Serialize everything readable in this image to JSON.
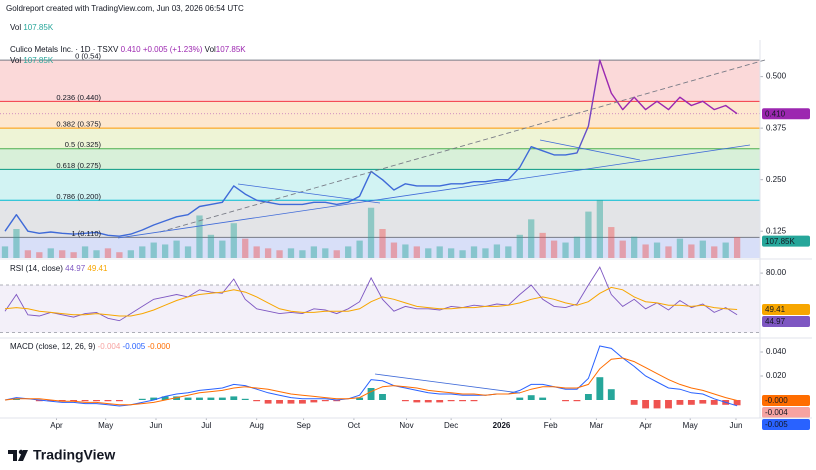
{
  "header": {
    "credit": "Goldreport created with TradingView.com, Jun 03, 2026 06:54 UTC"
  },
  "footer": {
    "brand": "TradingView"
  },
  "chart_data": [
    {
      "type": "price",
      "title": "Culico Metals Inc. · 1D · TSXV",
      "last_label": "0.410",
      "change": "+0.005 (+1.23%)",
      "color": "#5b5bd6",
      "values": [
        0.125,
        0.165,
        0.125,
        0.12,
        0.123,
        0.12,
        0.118,
        0.12,
        0.122,
        0.115,
        0.113,
        0.118,
        0.128,
        0.14,
        0.15,
        0.16,
        0.165,
        0.185,
        0.19,
        0.195,
        0.235,
        0.215,
        0.2,
        0.195,
        0.19,
        0.19,
        0.19,
        0.195,
        0.195,
        0.19,
        0.195,
        0.21,
        0.27,
        0.25,
        0.225,
        0.24,
        0.235,
        0.235,
        0.235,
        0.24,
        0.24,
        0.245,
        0.245,
        0.25,
        0.25,
        0.28,
        0.33,
        0.32,
        0.31,
        0.31,
        0.315,
        0.38,
        0.54,
        0.46,
        0.42,
        0.45,
        0.42,
        0.44,
        0.42,
        0.45,
        0.43,
        0.44,
        0.42,
        0.43,
        0.41
      ],
      "volume": {
        "name": "Vol",
        "last_label": "107.85K",
        "up_color": "#26a69a",
        "down_color": "#ef5350",
        "values": [
          60000,
          150000,
          40000,
          30000,
          50000,
          40000,
          30000,
          60000,
          40000,
          50000,
          30000,
          40000,
          60000,
          80000,
          70000,
          90000,
          60000,
          220000,
          120000,
          90000,
          180000,
          100000,
          60000,
          50000,
          40000,
          50000,
          40000,
          60000,
          50000,
          40000,
          60000,
          90000,
          260000,
          150000,
          80000,
          70000,
          60000,
          50000,
          60000,
          50000,
          40000,
          60000,
          50000,
          70000,
          60000,
          120000,
          200000,
          130000,
          90000,
          80000,
          110000,
          240000,
          300000,
          160000,
          90000,
          110000,
          70000,
          80000,
          60000,
          100000,
          70000,
          90000,
          60000,
          80000,
          107850
        ]
      },
      "fib": [
        {
          "label": "0 (0.54)",
          "value": 0.54,
          "color": "#787b86",
          "fill": "#fbd9d9"
        },
        {
          "label": "0.236 (0.440)",
          "value": 0.44,
          "color": "#f23645",
          "fill": "#fde7cf"
        },
        {
          "label": "0.382 (0.375)",
          "value": 0.375,
          "color": "#ff9800",
          "fill": "#eef4d6"
        },
        {
          "label": "0.5 (0.325)",
          "value": 0.325,
          "color": "#4caf50",
          "fill": "#d8f0d9"
        },
        {
          "label": "0.618 (0.275)",
          "value": 0.275,
          "color": "#089981",
          "fill": "#d2f3f3"
        },
        {
          "label": "0.786 (0.200)",
          "value": 0.2,
          "color": "#00bcd4",
          "fill": "#e3e4e7"
        },
        {
          "label": "1 (0.110)",
          "value": 0.11,
          "color": "#787b86",
          "fill": "#d8dff8"
        }
      ],
      "xlim": [
        0,
        66
      ],
      "ylim": [
        0.06,
        0.55
      ],
      "yticks": [
        {
          "value": 0.5,
          "label": "0.500"
        },
        {
          "value": 0.375,
          "label": "0.375"
        },
        {
          "value": 0.25,
          "label": "0.250"
        },
        {
          "value": 0.125,
          "label": "0.125"
        }
      ]
    },
    {
      "type": "rsi",
      "title": "RSI (14, close)",
      "series": [
        {
          "color": "#7e57c2",
          "last_label": "44.97",
          "values": [
            48,
            62,
            45,
            44,
            47,
            45,
            43,
            46,
            47,
            42,
            40,
            46,
            52,
            58,
            60,
            62,
            60,
            66,
            64,
            63,
            75,
            58,
            50,
            48,
            46,
            47,
            46,
            50,
            49,
            46,
            50,
            56,
            76,
            58,
            48,
            52,
            50,
            50,
            49,
            52,
            51,
            53,
            52,
            54,
            53,
            62,
            70,
            58,
            52,
            51,
            54,
            70,
            85,
            62,
            52,
            58,
            50,
            55,
            49,
            57,
            51,
            54,
            47,
            51,
            44.97
          ]
        },
        {
          "color": "#f7a600",
          "last_label": "49.41",
          "values": [
            50,
            51,
            50,
            48,
            47,
            46,
            45,
            45,
            46,
            45,
            44,
            44,
            46,
            49,
            53,
            57,
            60,
            62,
            63,
            64,
            66,
            64,
            60,
            55,
            50,
            48,
            47,
            47,
            48,
            48,
            48,
            50,
            56,
            60,
            58,
            55,
            52,
            51,
            50,
            50,
            51,
            51,
            52,
            52,
            53,
            55,
            58,
            60,
            58,
            55,
            53,
            56,
            63,
            68,
            66,
            60,
            56,
            55,
            53,
            53,
            52,
            53,
            51,
            50,
            49.41
          ]
        }
      ],
      "band": [
        30,
        70
      ],
      "xlim": [
        0,
        66
      ],
      "ylim": [
        28,
        91
      ],
      "yticks": [
        {
          "value": 80,
          "label": "80.00"
        }
      ]
    },
    {
      "type": "macd",
      "title": "MACD (close, 12, 26, 9)",
      "histogram": {
        "up_color": "#26a69a",
        "down_color": "#ef5350",
        "last_label": "-0.004",
        "values": [
          0,
          0.001,
          0,
          -0.001,
          -0.001,
          -0.001,
          -0.001,
          -0.001,
          -0.001,
          -0.001,
          -0.001,
          0,
          0.001,
          0.002,
          0.003,
          0.003,
          0.002,
          0.002,
          0.002,
          0.002,
          0.003,
          0.001,
          -0.001,
          -0.003,
          -0.003,
          -0.003,
          -0.003,
          -0.002,
          -0.001,
          -0.001,
          0,
          0.002,
          0.01,
          0.005,
          0,
          -0.001,
          -0.002,
          -0.002,
          -0.002,
          -0.001,
          -0.001,
          -0.001,
          0,
          0,
          0,
          0.002,
          0.004,
          0.002,
          0,
          -0.001,
          -0.001,
          0.005,
          0.019,
          0.009,
          0,
          -0.004,
          -0.007,
          -0.007,
          -0.007,
          -0.004,
          -0.004,
          -0.003,
          -0.004,
          -0.004,
          -0.0044
        ]
      },
      "macd": {
        "color": "#2962ff",
        "last_label": "-0.005",
        "values": [
          0,
          0.002,
          0.001,
          0,
          -0.001,
          -0.002,
          -0.002,
          -0.003,
          -0.003,
          -0.004,
          -0.005,
          -0.004,
          -0.002,
          0,
          0.003,
          0.005,
          0.006,
          0.008,
          0.009,
          0.01,
          0.013,
          0.012,
          0.009,
          0.006,
          0.004,
          0.002,
          0.001,
          0.001,
          0.001,
          0,
          0.001,
          0.004,
          0.017,
          0.016,
          0.012,
          0.01,
          0.008,
          0.006,
          0.005,
          0.005,
          0.004,
          0.004,
          0.004,
          0.005,
          0.005,
          0.008,
          0.013,
          0.013,
          0.011,
          0.009,
          0.009,
          0.018,
          0.045,
          0.043,
          0.035,
          0.028,
          0.02,
          0.015,
          0.01,
          0.009,
          0.006,
          0.005,
          0.001,
          -0.002,
          -0.0048
        ]
      },
      "signal": {
        "color": "#ff6d00",
        "last_label": "-0.000",
        "values": [
          0,
          0.001,
          0.001,
          0.001,
          0,
          -0.001,
          -0.001,
          -0.002,
          -0.002,
          -0.003,
          -0.004,
          -0.004,
          -0.003,
          -0.002,
          0,
          0.002,
          0.004,
          0.006,
          0.007,
          0.008,
          0.01,
          0.011,
          0.01,
          0.009,
          0.007,
          0.005,
          0.004,
          0.003,
          0.002,
          0.001,
          0.001,
          0.002,
          0.007,
          0.011,
          0.012,
          0.011,
          0.01,
          0.008,
          0.007,
          0.006,
          0.005,
          0.005,
          0.004,
          0.005,
          0.005,
          0.006,
          0.009,
          0.011,
          0.011,
          0.01,
          0.01,
          0.013,
          0.026,
          0.034,
          0.035,
          0.032,
          0.027,
          0.022,
          0.017,
          0.013,
          0.01,
          0.008,
          0.005,
          0.002,
          -0.0004
        ]
      },
      "xlim": [
        0,
        66
      ],
      "ylim": [
        -0.015,
        0.05
      ],
      "yticks": [
        {
          "value": 0.04,
          "label": "0.040"
        },
        {
          "value": 0.02,
          "label": "0.020"
        }
      ],
      "xticks": [
        {
          "value": 4.5,
          "label": "Apr"
        },
        {
          "value": 8.8,
          "label": "May"
        },
        {
          "value": 13.2,
          "label": "Jun"
        },
        {
          "value": 17.6,
          "label": "Jul"
        },
        {
          "value": 22,
          "label": "Aug"
        },
        {
          "value": 26.1,
          "label": "Sep"
        },
        {
          "value": 30.5,
          "label": "Oct"
        },
        {
          "value": 35.1,
          "label": "Nov"
        },
        {
          "value": 39,
          "label": "Dec"
        },
        {
          "value": 43.4,
          "label": "2026"
        },
        {
          "value": 47.7,
          "label": "Feb"
        },
        {
          "value": 51.7,
          "label": "Mar"
        },
        {
          "value": 56,
          "label": "Apr"
        },
        {
          "value": 59.9,
          "label": "May"
        },
        {
          "value": 63.9,
          "label": "Jun"
        }
      ]
    }
  ]
}
